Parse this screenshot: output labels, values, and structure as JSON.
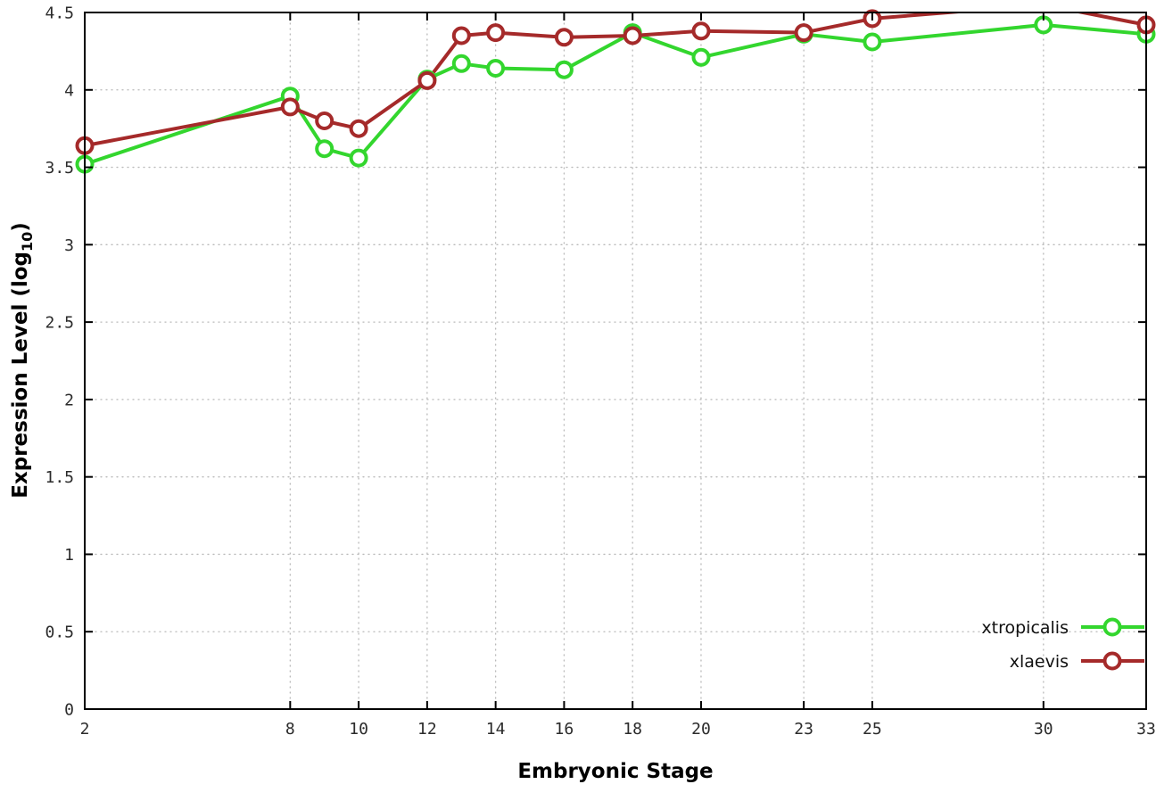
{
  "chart_data": {
    "type": "line",
    "title": "",
    "xlabel": "Embryonic Stage",
    "ylabel": "Expression Level (log10)",
    "ylabel_parts": {
      "main": "Expression Level (log",
      "sub": "10",
      "end": ")"
    },
    "xlim": [
      2,
      33
    ],
    "ylim": [
      0,
      4.5
    ],
    "grid": true,
    "legend_position": "inside-bottom-right",
    "line_width": 4,
    "marker": "open-circle",
    "background_color": "#ffffff",
    "grid_color": "#b9b9b9",
    "x": [
      2,
      8,
      9,
      10,
      12,
      13,
      14,
      16,
      18,
      20,
      23,
      25,
      30,
      33
    ],
    "xticks": [
      2,
      8,
      10,
      12,
      14,
      16,
      18,
      20,
      23,
      25,
      30,
      33
    ],
    "yticks": [
      0,
      0.5,
      1,
      1.5,
      2,
      2.5,
      3,
      3.5,
      4,
      4.5
    ],
    "ytick_labels": [
      "0",
      "0.5",
      "1",
      "1.5",
      "2",
      "2.5",
      "3",
      "3.5",
      "4",
      "4.5"
    ],
    "series": [
      {
        "name": "xtropicalis",
        "color": "#33d62e",
        "values": [
          3.52,
          3.96,
          3.62,
          3.56,
          4.07,
          4.17,
          4.14,
          4.13,
          4.37,
          4.21,
          4.36,
          4.31,
          4.42,
          4.36
        ]
      },
      {
        "name": "xlaevis",
        "color": "#a52a2a",
        "values": [
          3.64,
          3.89,
          3.8,
          3.75,
          4.06,
          4.35,
          4.37,
          4.34,
          4.35,
          4.38,
          4.37,
          4.46,
          4.55,
          4.42
        ]
      }
    ]
  }
}
